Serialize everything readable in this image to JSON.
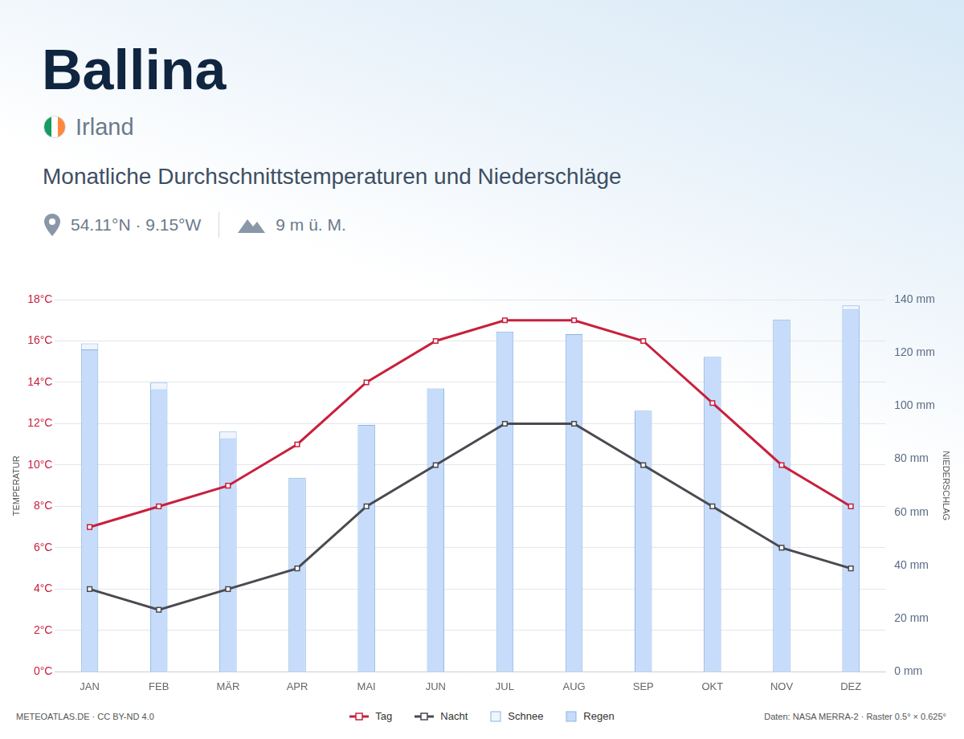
{
  "page": {
    "title": "Ballina",
    "country": "Irland",
    "heading": "Monatliche Durchschnittstemperaturen und Niederschläge",
    "coordinates": "54.11°N · 9.15°W",
    "elevation": "9 m ü. M.",
    "source": "METEOATLAS.DE · CC BY-ND 4.0",
    "data_note": "Daten: NASA MERRA-2 · Raster 0.5° × 0.625°"
  },
  "chart_data": {
    "type": "bar",
    "categories": [
      "JAN",
      "FEB",
      "MÄR",
      "APR",
      "MAI",
      "JUN",
      "JUL",
      "AUG",
      "SEP",
      "OKT",
      "NOV",
      "DEZ"
    ],
    "y_label": "TEMPERATUR",
    "y2_label": "NIEDERSCHLAG",
    "ylim": [
      0,
      18
    ],
    "yticks": [
      {
        "value": 0,
        "label": "0°C"
      },
      {
        "value": 2,
        "label": "2°C"
      },
      {
        "value": 4,
        "label": "4°C"
      },
      {
        "value": 6,
        "label": "6°C"
      },
      {
        "value": 8,
        "label": "8°C"
      },
      {
        "value": 10,
        "label": "10°C"
      },
      {
        "value": 12,
        "label": "12°C"
      },
      {
        "value": 14,
        "label": "14°C"
      },
      {
        "value": 16,
        "label": "16°C"
      },
      {
        "value": 18,
        "label": "18°C"
      }
    ],
    "y2lim": [
      0,
      140
    ],
    "y2ticks": [
      {
        "value": 0,
        "label": "0 mm"
      },
      {
        "value": 20,
        "label": "20 mm"
      },
      {
        "value": 40,
        "label": "40 mm"
      },
      {
        "value": 60,
        "label": "60 mm"
      },
      {
        "value": 80,
        "label": "80 mm"
      },
      {
        "value": 100,
        "label": "100 mm"
      },
      {
        "value": 120,
        "label": "120 mm"
      },
      {
        "value": 140,
        "label": "140 mm"
      }
    ],
    "grid": true,
    "stacked": true,
    "legend": "bottom",
    "series": [
      {
        "name": "Tag",
        "type": "line",
        "marker": "square",
        "color": "#c8203c",
        "values": [
          7,
          8,
          9,
          11,
          14,
          16,
          17,
          17,
          16,
          13,
          10,
          8
        ]
      },
      {
        "name": "Nacht",
        "type": "line",
        "marker": "square",
        "color": "#4a4a50",
        "values": [
          4,
          3,
          4,
          5,
          8,
          10,
          12,
          12,
          10,
          8,
          6,
          5
        ]
      },
      {
        "name": "Schnee",
        "type": "bar",
        "axis": "y2",
        "color": "#eef5fe",
        "values": [
          2.2,
          2.5,
          2.5,
          0,
          0,
          0,
          0,
          0,
          0,
          0,
          0,
          1.5
        ]
      },
      {
        "name": "Regen",
        "type": "bar",
        "axis": "y2",
        "color": "#c6dcfa",
        "values": [
          121.3,
          106.3,
          87.9,
          73,
          92.9,
          106.6,
          128,
          127,
          98.2,
          118.5,
          132.5,
          136.3
        ]
      }
    ]
  }
}
